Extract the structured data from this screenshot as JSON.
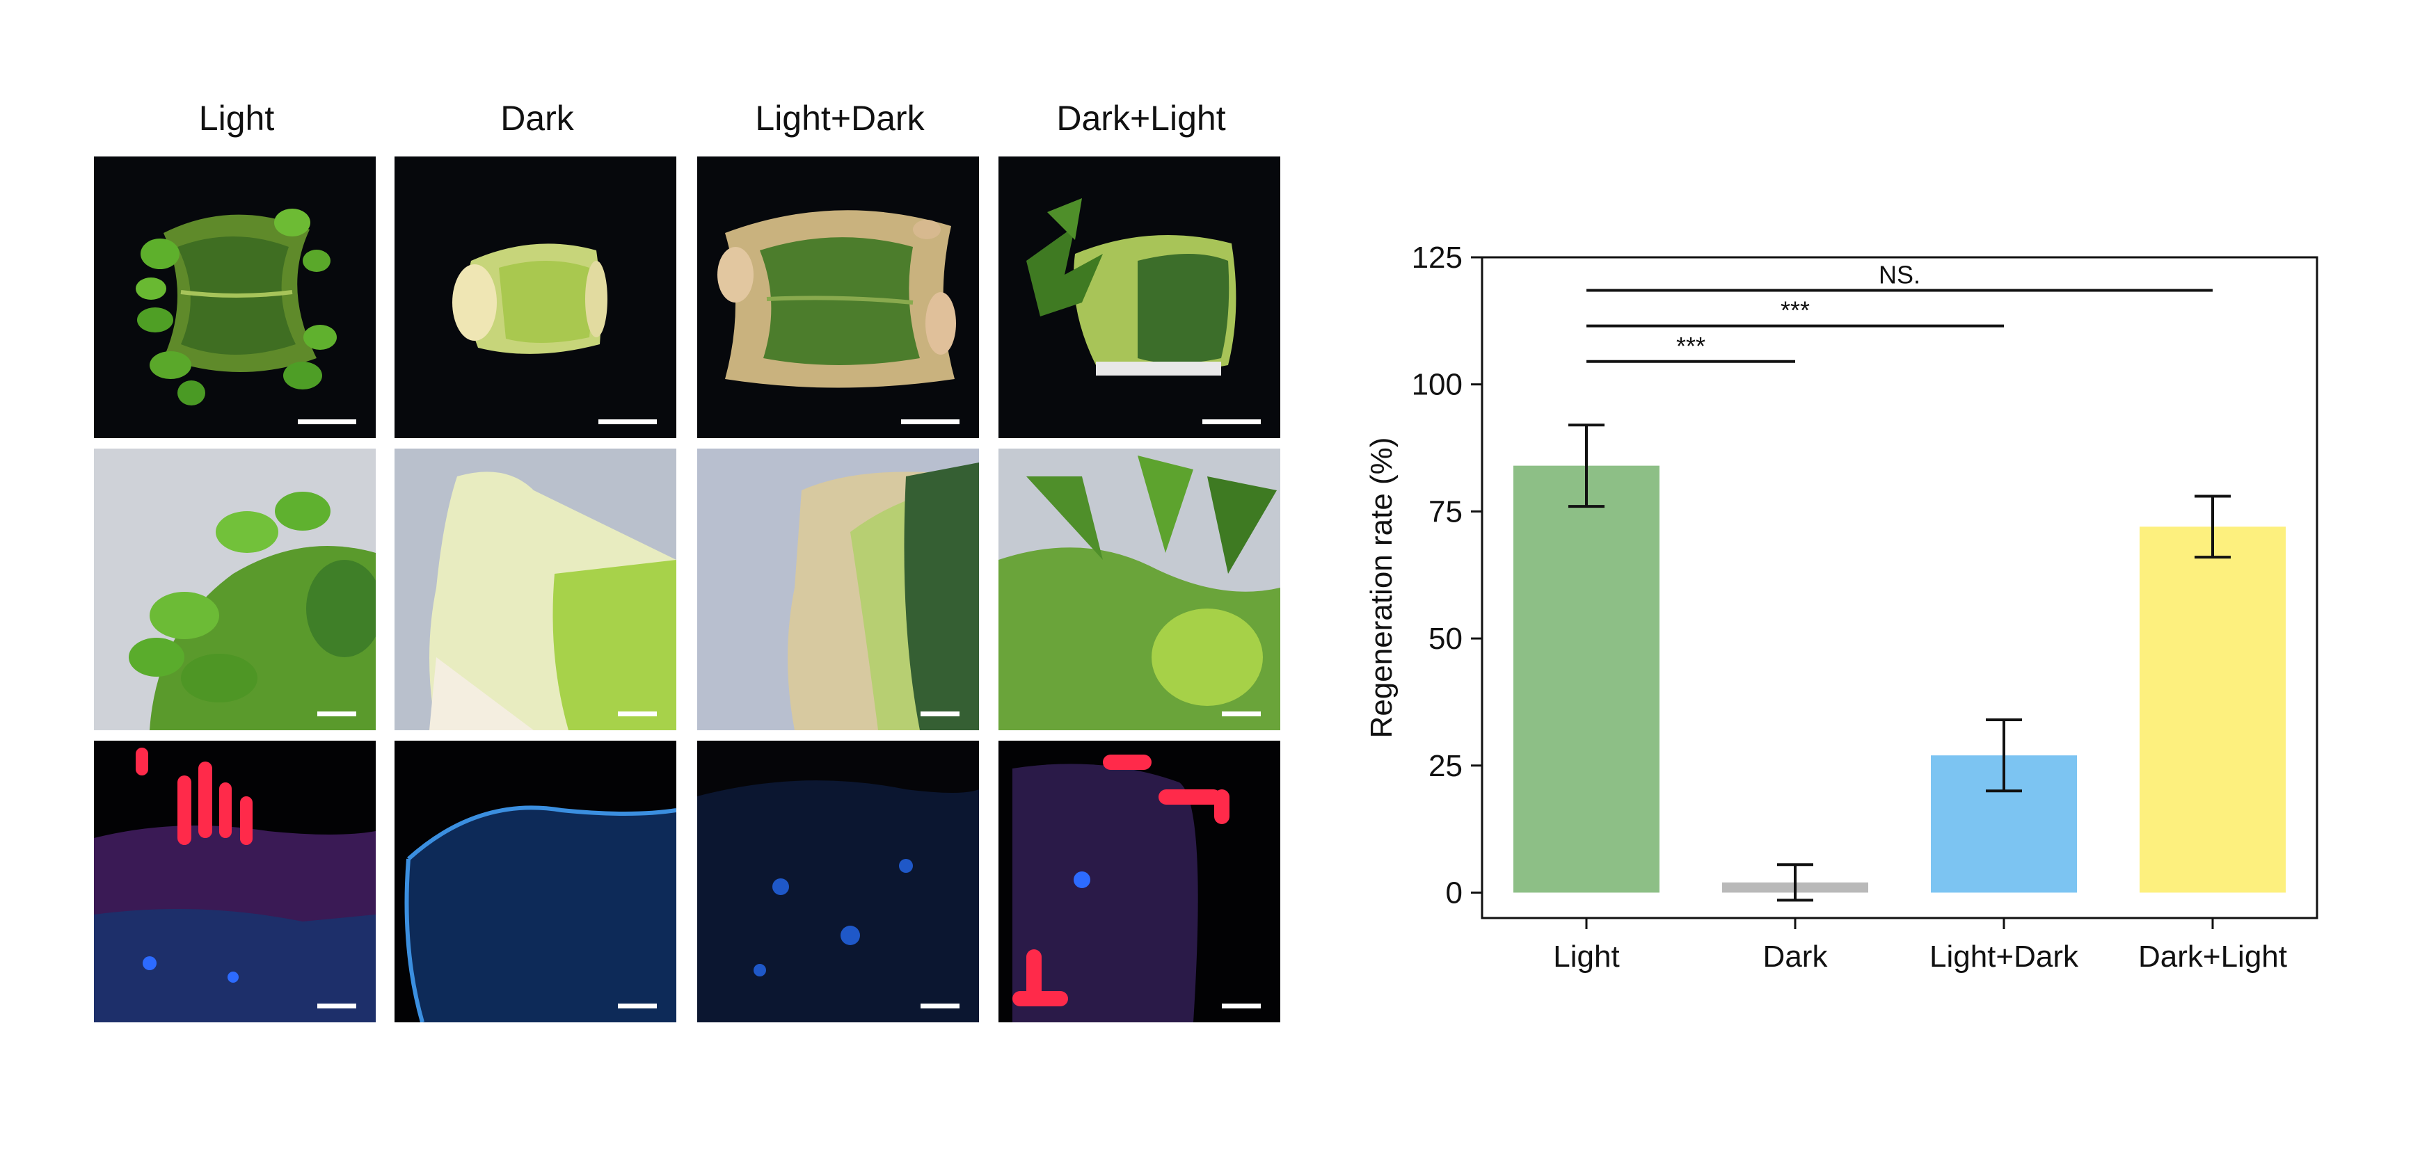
{
  "figure": {
    "columns": [
      {
        "label": "Light"
      },
      {
        "label": "Dark"
      },
      {
        "label": "Light+Dark"
      },
      {
        "label": "Dark+Light"
      }
    ]
  },
  "chart_data": {
    "type": "bar",
    "categories": [
      "Light",
      "Dark",
      "Light+Dark",
      "Dark+Light"
    ],
    "values": [
      84,
      2,
      27,
      72
    ],
    "error": [
      8,
      3.5,
      7,
      6
    ],
    "colors": [
      "#8dbf86",
      "#b9b9b9",
      "#7cc4f2",
      "#fdf07e"
    ],
    "ylabel": "Regeneration rate (%)",
    "ylim": [
      -5,
      125
    ],
    "yticks": [
      0,
      25,
      50,
      75,
      100,
      125
    ],
    "grid": false,
    "significance": [
      {
        "from": "Light",
        "to": "Dark",
        "label": "***"
      },
      {
        "from": "Light",
        "to": "Light+Dark",
        "label": "***"
      },
      {
        "from": "Light",
        "to": "Dark+Light",
        "label": "NS."
      }
    ]
  }
}
